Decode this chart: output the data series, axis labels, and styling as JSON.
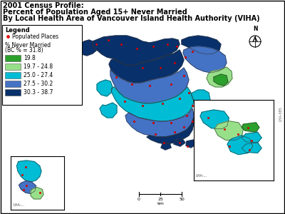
{
  "title_line1": "2001 Census Profile:",
  "title_line2": "Percent of Population Aged 15+ Never Married",
  "title_line3": "By Local Health Area of Vancouver Island Health Authority (VIHA)",
  "legend_title": "Legend",
  "legend_categories": [
    {
      "label": "19.8",
      "color": "#2ca02c"
    },
    {
      "label": "19.7 - 24.8",
      "color": "#98df8a"
    },
    {
      "label": "25.0 - 27.4",
      "color": "#00bcd4"
    },
    {
      "label": "27.5 - 30.2",
      "color": "#4472c4"
    },
    {
      "label": "30.3 - 38.7",
      "color": "#08306b"
    }
  ],
  "c_darkblue": "#08306b",
  "c_medblue": "#4472c4",
  "c_cyan": "#00bcd4",
  "c_ltgreen": "#98df8a",
  "c_green": "#2ca02c",
  "c_darknavy": "#003080",
  "background_color": "#ffffff",
  "title_fontsize": 7.0,
  "legend_fontsize": 5.5,
  "figure_width": 4.0,
  "figure_height": 3.0,
  "dpi": 100
}
